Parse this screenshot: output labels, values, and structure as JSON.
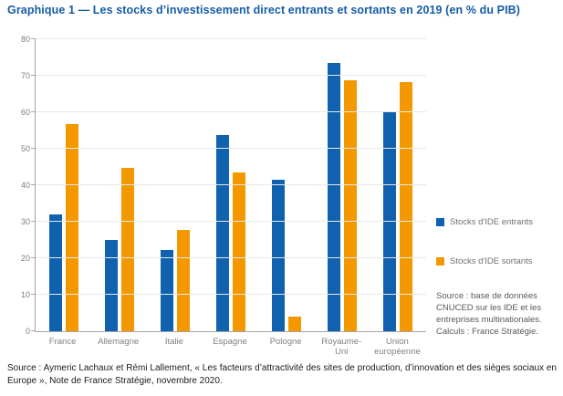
{
  "title": "Graphique 1 — Les stocks d’investissement direct entrants et sortants en 2019 (en % du PIB)",
  "colors": {
    "entrants_blue": "#1062ae",
    "sortants_orange": "#f49800",
    "title_blue": "#155ca6",
    "axis_gray": "#a6a6a6",
    "grid_gray": "#e8e8e8"
  },
  "chart_data": {
    "type": "bar",
    "categories": [
      "France",
      "Allemagne",
      "Italie",
      "Espagne",
      "Pologne",
      "Royaume-Uni",
      "Union européenne"
    ],
    "series": [
      {
        "name": "Stocks d'IDE entrants",
        "color": "#1062ae",
        "values": [
          32.1,
          24.9,
          22.3,
          53.8,
          41.4,
          73.4,
          60.3
        ]
      },
      {
        "name": "Stocks d'IDE sortants",
        "color": "#f49800",
        "values": [
          56.8,
          44.8,
          27.8,
          43.4,
          4.1,
          68.8,
          68.2
        ]
      }
    ],
    "title": "Graphique 1 — Les stocks d’investissement direct entrants et sortants en 2019 (en % du PIB)",
    "xlabel": "",
    "ylabel": "",
    "ylim": [
      0,
      80
    ],
    "y_ticks": [
      0,
      10,
      20,
      30,
      40,
      50,
      60,
      70,
      80
    ],
    "grid": true,
    "legend_position": "right"
  },
  "side_source": "Source : base de données CNUCED sur les IDE et les entreprises multinationales. Calculs : France Stratégie.",
  "bottom_source": "Source : Aymeric Lachaux et Rémi Lallement, « Les facteurs d’attractivité des sites de production, d’innovation et des sièges sociaux en  Europe  »,  Note  de  France  Stratégie, novembre 2020."
}
